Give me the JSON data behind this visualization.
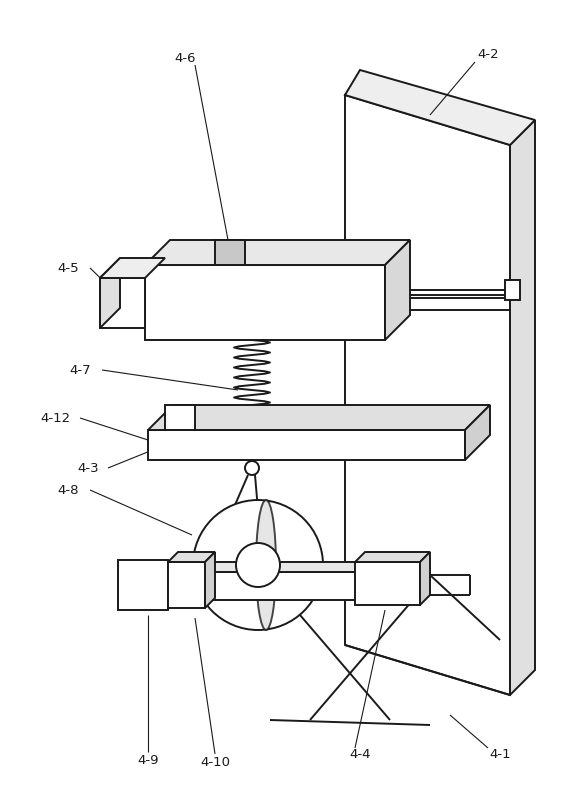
{
  "bg_color": "#ffffff",
  "line_color": "#1a1a1a",
  "line_width": 1.4,
  "thin_line": 0.8,
  "fig_width": 5.67,
  "fig_height": 7.99
}
